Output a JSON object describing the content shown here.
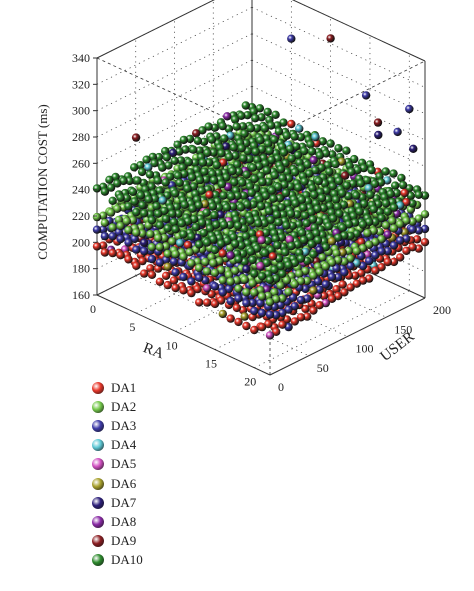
{
  "chart_data": {
    "type": "scatter",
    "projection": "3d",
    "zlabel": "COMPUTATION COST (ms)",
    "xlabel": "RA",
    "ylabel": "USER",
    "xlim": [
      0,
      22
    ],
    "ylim": [
      0,
      200
    ],
    "zlim": [
      160,
      340
    ],
    "x_ticks": [
      "0",
      "5",
      "10",
      "15",
      "20"
    ],
    "y_ticks": [
      "0",
      "50",
      "100",
      "150",
      "200"
    ],
    "z_ticks": [
      "160",
      "180",
      "200",
      "220",
      "240",
      "260",
      "280",
      "300",
      "320",
      "340"
    ],
    "grid": true,
    "legend_position": "bottom-left",
    "series": [
      {
        "name": "DA1",
        "color": "#e8372a",
        "surface": {
          "base": 203,
          "slope_x": -0.3,
          "slope_y": 0.06
        }
      },
      {
        "name": "DA2",
        "color": "#74c94a",
        "surface": {
          "base": 225,
          "slope_x": -0.2,
          "slope_y": 0.05
        }
      },
      {
        "name": "DA3",
        "color": "#3e3ba8",
        "surface": {
          "base": 215,
          "slope_x": -0.25,
          "slope_y": 0.055
        }
      },
      {
        "name": "DA4",
        "color": "#5ec9d6",
        "surface": null
      },
      {
        "name": "DA5",
        "color": "#d14fc1",
        "surface": null
      },
      {
        "name": "DA6",
        "color": "#a8a12c",
        "surface": null
      },
      {
        "name": "DA7",
        "color": "#2c1f7a",
        "surface": null
      },
      {
        "name": "DA8",
        "color": "#8a2aa6",
        "surface": null
      },
      {
        "name": "DA9",
        "color": "#8c1e22",
        "surface": null
      },
      {
        "name": "DA10",
        "color": "#2e8b2e",
        "surface": {
          "base": 243,
          "slope_x": -0.3,
          "slope_y": 0.03
        }
      }
    ],
    "outliers": [
      {
        "series": "DA3",
        "x": 5,
        "y": 200,
        "z": 310
      },
      {
        "series": "DA9",
        "x": 10,
        "y": 200,
        "z": 324
      },
      {
        "series": "DA3",
        "x": 20,
        "y": 200,
        "z": 298
      },
      {
        "series": "DA3",
        "x": 20,
        "y": 185,
        "z": 285
      },
      {
        "series": "DA3",
        "x": 15,
        "y": 195,
        "z": 296
      },
      {
        "series": "DA9",
        "x": 18,
        "y": 180,
        "z": 288
      },
      {
        "series": "DA7",
        "x": 20,
        "y": 160,
        "z": 290
      },
      {
        "series": "DA9",
        "x": 3,
        "y": 20,
        "z": 282
      },
      {
        "series": "DA4",
        "x": 13,
        "y": 150,
        "z": 272
      },
      {
        "series": "DA7",
        "x": 21,
        "y": 195,
        "z": 272
      }
    ]
  }
}
